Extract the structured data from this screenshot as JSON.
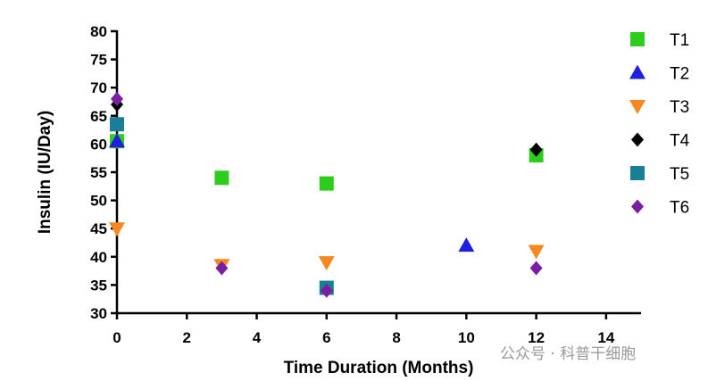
{
  "chart_data": {
    "type": "scatter",
    "xlabel": "Time Duration (Months)",
    "ylabel": "Insulin (IU/Day)",
    "xlim": [
      0,
      15
    ],
    "ylim": [
      30,
      80
    ],
    "xticks": [
      0,
      2,
      4,
      6,
      8,
      10,
      12,
      14
    ],
    "yticks": [
      30,
      35,
      40,
      45,
      50,
      55,
      60,
      65,
      70,
      75,
      80
    ],
    "grid": false,
    "legend_position": "right",
    "series": [
      {
        "name": "T1",
        "marker": "square",
        "color": "#2ecc1c",
        "points": [
          {
            "x": 0,
            "y": 60.5
          },
          {
            "x": 3,
            "y": 54
          },
          {
            "x": 6,
            "y": 53
          },
          {
            "x": 12,
            "y": 58
          }
        ]
      },
      {
        "name": "T2",
        "marker": "triangle-up",
        "color": "#1f1fe0",
        "points": [
          {
            "x": 0,
            "y": 60.5
          },
          {
            "x": 10,
            "y": 42
          }
        ]
      },
      {
        "name": "T3",
        "marker": "triangle-down",
        "color": "#f5891f",
        "points": [
          {
            "x": 0,
            "y": 45
          },
          {
            "x": 3,
            "y": 38.5
          },
          {
            "x": 6,
            "y": 39
          },
          {
            "x": 12,
            "y": 41
          }
        ]
      },
      {
        "name": "T4",
        "marker": "diamond",
        "color": "#000000",
        "points": [
          {
            "x": 0,
            "y": 67
          },
          {
            "x": 12,
            "y": 59
          }
        ]
      },
      {
        "name": "T5",
        "marker": "square",
        "color": "#1a7f96",
        "points": [
          {
            "x": 0,
            "y": 63.5
          },
          {
            "x": 6,
            "y": 34.5
          }
        ]
      },
      {
        "name": "T6",
        "marker": "diamond",
        "color": "#7b1fa2",
        "points": [
          {
            "x": 0,
            "y": 68
          },
          {
            "x": 3,
            "y": 38
          },
          {
            "x": 6,
            "y": 34
          },
          {
            "x": 12,
            "y": 38
          }
        ]
      }
    ]
  },
  "watermark": "公众号 · 科普干细胞"
}
